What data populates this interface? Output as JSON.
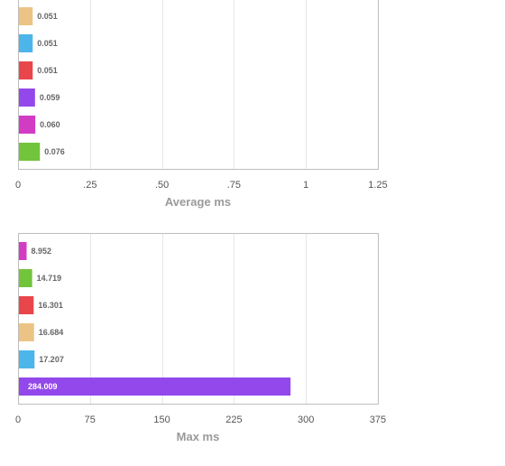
{
  "chart_data": [
    {
      "type": "bar",
      "orientation": "horizontal",
      "xlabel": "Average ms",
      "xlim": [
        0,
        1.25
      ],
      "tick_values": [
        0,
        0.25,
        0.5,
        0.75,
        1,
        1.25
      ],
      "tick_labels": [
        "0",
        ".25",
        ".50",
        ".75",
        "1",
        "1.25"
      ],
      "grid": true,
      "values": [
        0.051,
        0.051,
        0.051,
        0.059,
        0.06,
        0.076
      ],
      "value_labels": [
        "0.051",
        "0.051",
        "0.051",
        "0.059",
        "0.060",
        "0.076"
      ],
      "colors": [
        "#ebc485",
        "#4cb6ea",
        "#e9464b",
        "#9248ea",
        "#d23cc4",
        "#72c43d"
      ]
    },
    {
      "type": "bar",
      "orientation": "horizontal",
      "xlabel": "Max ms",
      "xlim": [
        0,
        375
      ],
      "tick_values": [
        0,
        75,
        150,
        225,
        300,
        375
      ],
      "tick_labels": [
        "0",
        "75",
        "150",
        "225",
        "300",
        "375"
      ],
      "grid": true,
      "values": [
        8.952,
        14.719,
        16.301,
        16.684,
        17.207,
        284.009
      ],
      "value_labels": [
        "8.952",
        "14.719",
        "16.301",
        "16.684",
        "17.207",
        "284.009"
      ],
      "colors": [
        "#d23cc4",
        "#72c43d",
        "#e9464b",
        "#ebc485",
        "#4cb6ea",
        "#9248ea"
      ]
    }
  ]
}
